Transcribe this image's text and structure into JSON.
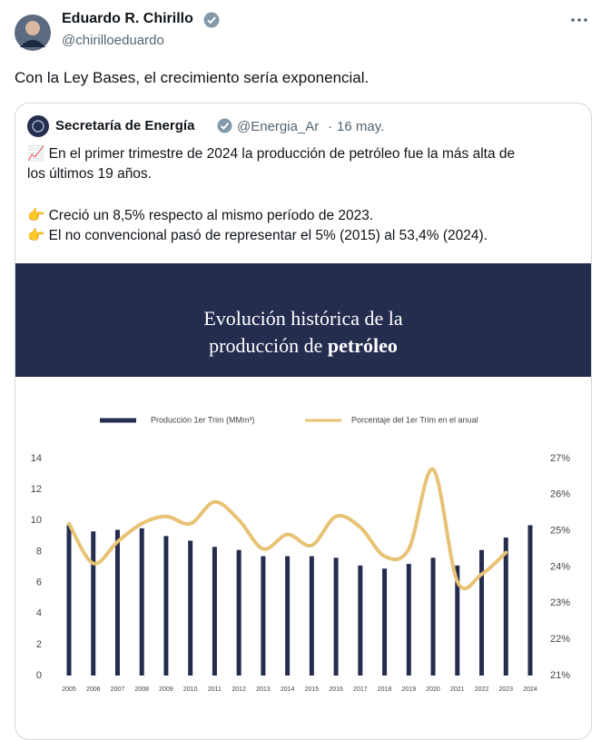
{
  "tweet": {
    "name": "Eduardo R. Chirillo",
    "handle": "@chirilloeduardo",
    "text": "Con la Ley Bases, el crecimiento sería exponencial."
  },
  "quote": {
    "name": "Secretaría de Energía",
    "handle": "@Energia_Ar",
    "separator": "·",
    "date": "16 may.",
    "lines": [
      "📈 En el primer trimestre de 2024 la producción de petróleo fue la más alta de",
      "los últimos 19 años.",
      "👉 Creció un 8,5% respecto al mismo período de 2023.",
      "👉 El no convencional pasó de representar el 5% (2015) al 53,4% (2024)."
    ]
  },
  "chart_data": {
    "type": "bar",
    "title_line1": "Evolución histórica de la",
    "title_line2": "producción de",
    "title_bold": "petróleo",
    "categories": [
      "2005",
      "2006",
      "2007",
      "2008",
      "2009",
      "2010",
      "2011",
      "2012",
      "2013",
      "2014",
      "2015",
      "2016",
      "2017",
      "2018",
      "2019",
      "2020",
      "2021",
      "2022",
      "2023",
      "2024"
    ],
    "series": [
      {
        "name": "Producción 1er Trim (MMm³)",
        "color": "#252d4f",
        "type": "bar",
        "values": [
          9.7,
          9.3,
          9.4,
          9.5,
          9.0,
          8.7,
          8.3,
          8.1,
          7.7,
          7.7,
          7.7,
          7.6,
          7.1,
          6.9,
          7.2,
          7.6,
          7.1,
          8.1,
          8.9,
          9.7
        ]
      },
      {
        "name": "Porcentaje del 1er Trim en el anual",
        "color": "#e8c275",
        "type": "line",
        "axis": "y2",
        "values": [
          25.2,
          24.1,
          24.7,
          25.2,
          25.4,
          25.2,
          25.8,
          25.3,
          24.5,
          24.9,
          24.6,
          25.4,
          25.1,
          24.3,
          24.5,
          26.7,
          23.6,
          23.8,
          24.4,
          null
        ]
      }
    ],
    "ylim": [
      0,
      14
    ],
    "yticks": [
      0,
      2,
      4,
      6,
      8,
      10,
      12,
      14
    ],
    "y2lim": [
      21,
      27
    ],
    "y2ticks": [
      {
        "value": 21,
        "label": "21%"
      },
      {
        "value": 22,
        "label": "22%"
      },
      {
        "value": 23,
        "label": "23%"
      },
      {
        "value": 24,
        "label": "24%"
      },
      {
        "value": 25,
        "label": "25%"
      },
      {
        "value": 26,
        "label": "26%"
      },
      {
        "value": 27,
        "label": "27%"
      }
    ],
    "grid": false,
    "legend": "top"
  }
}
